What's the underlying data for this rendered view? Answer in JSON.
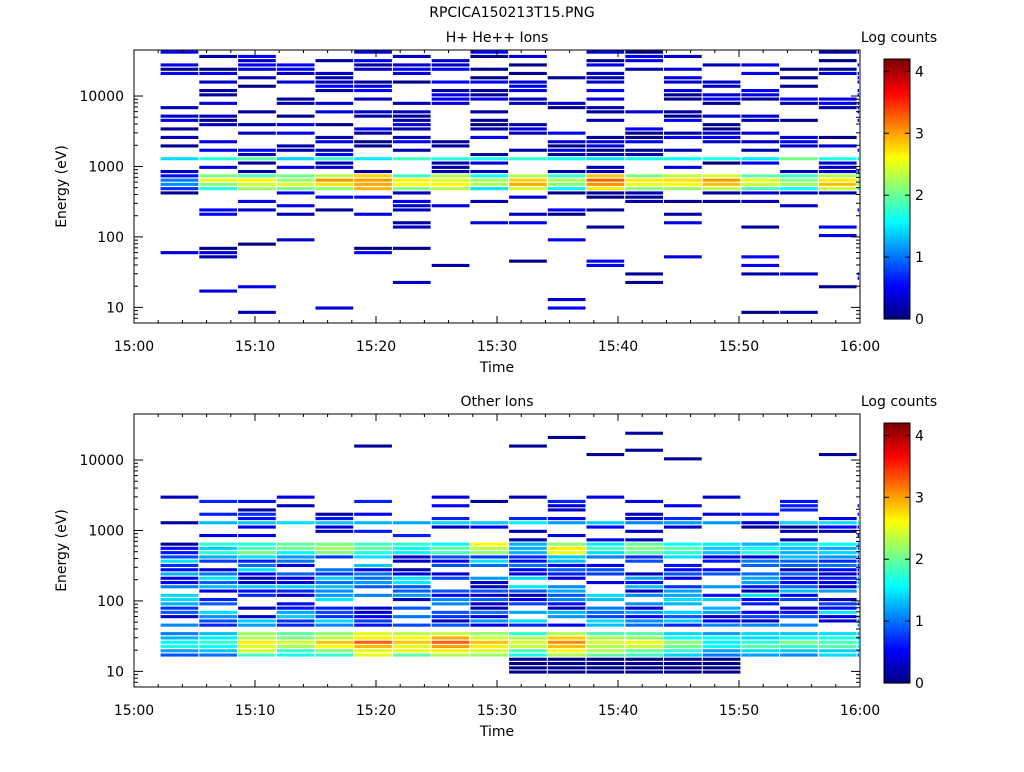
{
  "figure": {
    "title": "RPCICA150213T15.PNG"
  },
  "chart_data": [
    {
      "type": "heatmap",
      "title": "H+ He++ Ions",
      "xlabel": "Time",
      "ylabel": "Energy (eV)",
      "colorbar_label": "Log counts",
      "x_range": [
        "15:00",
        "16:00"
      ],
      "x_ticks": [
        "15:00",
        "15:10",
        "15:20",
        "15:30",
        "15:40",
        "15:50",
        "16:00"
      ],
      "y_scale": "log",
      "y_range": [
        6,
        45000
      ],
      "y_ticks": [
        "10",
        "100",
        "1000",
        "10000"
      ],
      "colorbar_range": [
        0,
        4.2
      ],
      "colorbar_ticks": [
        "0",
        "1",
        "2",
        "3",
        "4"
      ],
      "time_bins": 19,
      "bin_start_minute": 2.2,
      "bin_width_minutes": 3.2,
      "main_band_a_energy": 1300,
      "main_band_b_energy": 600,
      "main_band_a_levels": [
        1.6,
        1.7,
        1.8,
        1.5,
        1.9,
        1.6,
        1.7,
        1.8,
        1.6,
        1.8,
        1.7,
        1.6,
        1.8,
        1.7,
        1.6,
        1.5,
        2.0,
        1.8,
        1.6
      ],
      "main_band_b_levels": [
        1.1,
        2.3,
        2.6,
        2.4,
        2.8,
        3.2,
        2.5,
        2.6,
        2.2,
        3.0,
        2.2,
        3.2,
        2.5,
        2.8,
        2.8,
        2.4,
        2.3,
        2.9,
        2.2
      ],
      "scattered_counts": "mostly 0-0.5 log counts (dark blue) from 20 eV to 40000 eV",
      "colormap": [
        "#00008f",
        "#0000ff",
        "#0080ff",
        "#00ffff",
        "#80ff80",
        "#ffff00",
        "#ff8000",
        "#ff0000",
        "#800000"
      ]
    },
    {
      "type": "heatmap",
      "title": "Other Ions",
      "xlabel": "Time",
      "ylabel": "Energy (eV)",
      "colorbar_label": "Log counts",
      "x_range": [
        "15:00",
        "16:00"
      ],
      "x_ticks": [
        "15:00",
        "15:10",
        "15:20",
        "15:30",
        "15:40",
        "15:50",
        "16:00"
      ],
      "y_scale": "log",
      "y_range": [
        6,
        45000
      ],
      "y_ticks": [
        "10",
        "100",
        "1000",
        "10000"
      ],
      "colorbar_range": [
        0,
        4.2
      ],
      "colorbar_ticks": [
        "0",
        "1",
        "2",
        "3",
        "4"
      ],
      "time_bins": 19,
      "bin_start_minute": 2.2,
      "bin_width_minutes": 3.2,
      "upper_band_energy": 1300,
      "mid_band_energy": 550,
      "low_band_energy": 25,
      "upper_band_levels": [
        0.3,
        1.3,
        1.4,
        1.3,
        1.4,
        1.2,
        1.3,
        1.3,
        1.3,
        1.4,
        1.3,
        1.3,
        1.2,
        1.3,
        1.2,
        0.2,
        1.3,
        1.4,
        1.5
      ],
      "mid_band_levels": [
        0.3,
        1.5,
        1.9,
        1.8,
        2.3,
        1.8,
        1.7,
        1.8,
        2.4,
        1.5,
        2.4,
        1.7,
        1.8,
        1.7,
        1.6,
        1.4,
        1.3,
        1.5,
        1.2
      ],
      "low_band_levels": [
        1.5,
        1.8,
        2.6,
        2.3,
        2.6,
        3.0,
        2.7,
        3.0,
        2.8,
        2.4,
        2.9,
        2.5,
        2.4,
        2.0,
        1.6,
        1.8,
        1.8,
        1.9,
        1.4
      ],
      "scattered_counts": "mostly 0.2-1.5 log counts (blue) from 15 eV to 3000 eV",
      "colormap": [
        "#00008f",
        "#0000ff",
        "#0080ff",
        "#00ffff",
        "#80ff80",
        "#ffff00",
        "#ff8000",
        "#ff0000",
        "#800000"
      ]
    }
  ]
}
